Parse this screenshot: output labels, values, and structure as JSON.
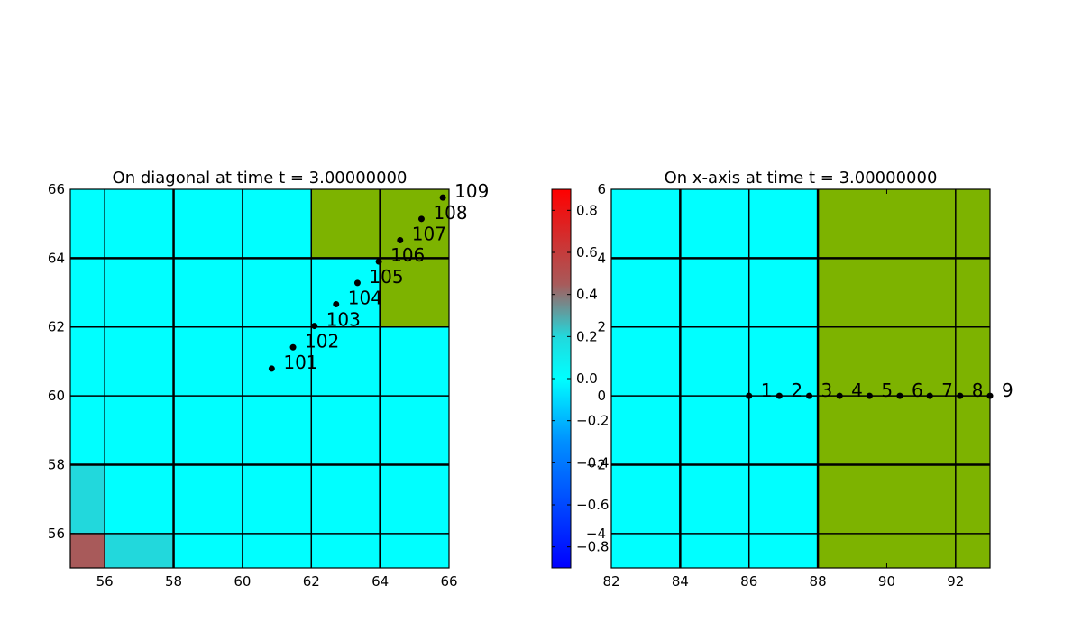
{
  "chart_data": [
    {
      "type": "heatmap",
      "title": "On diagonal at time t =      3.00000000",
      "xlim": [
        55,
        66
      ],
      "ylim": [
        55,
        66
      ],
      "xticks": [
        "56",
        "58",
        "60",
        "62",
        "64",
        "66"
      ],
      "yticks": [
        "56",
        "58",
        "60",
        "62",
        "64",
        "66"
      ],
      "cells": [
        {
          "x0": 55,
          "x1": 56,
          "y0": 55,
          "y1": 56,
          "color": "#a85a5a"
        },
        {
          "x0": 56,
          "x1": 58,
          "y0": 55,
          "y1": 56,
          "color": "#22d8dc"
        },
        {
          "x0": 55,
          "x1": 56,
          "y0": 56,
          "y1": 58,
          "color": "#22d8dc"
        },
        {
          "x0": 62,
          "x1": 66,
          "y0": 64,
          "y1": 66,
          "color": "#7db300"
        },
        {
          "x0": 64,
          "x1": 66,
          "y0": 62,
          "y1": 64,
          "color": "#7db300"
        }
      ],
      "grid_x": [
        56,
        58,
        60,
        62,
        64
      ],
      "grid_x_thick": [
        58,
        64
      ],
      "grid_y": [
        56,
        58,
        60,
        62,
        64
      ],
      "grid_y_thick": [
        58,
        64
      ],
      "points": [
        {
          "x": 60.85,
          "y": 60.79,
          "label": "101"
        },
        {
          "x": 61.47,
          "y": 61.41,
          "label": "102"
        },
        {
          "x": 62.09,
          "y": 62.03,
          "label": "103"
        },
        {
          "x": 62.72,
          "y": 62.66,
          "label": "104"
        },
        {
          "x": 63.34,
          "y": 63.28,
          "label": "105"
        },
        {
          "x": 63.96,
          "y": 63.9,
          "label": "106"
        },
        {
          "x": 64.58,
          "y": 64.52,
          "label": "107"
        },
        {
          "x": 65.2,
          "y": 65.14,
          "label": "108"
        },
        {
          "x": 65.82,
          "y": 65.76,
          "label": "109"
        }
      ]
    },
    {
      "type": "heatmap",
      "title": "On x-axis at time t =      3.00000000",
      "xlim": [
        82,
        93
      ],
      "ylim": [
        -5,
        6
      ],
      "xticks": [
        "82",
        "84",
        "86",
        "88",
        "90",
        "92"
      ],
      "yticks": [
        "−4",
        "−2",
        "0",
        "2",
        "4",
        "6"
      ],
      "cells": [
        {
          "x0": 88,
          "x1": 93,
          "y0": -5,
          "y1": 6,
          "color": "#7db300"
        }
      ],
      "grid_x": [
        84,
        86,
        88,
        92
      ],
      "grid_x_thick": [
        84,
        88
      ],
      "grid_y": [
        -4,
        -2,
        0,
        2,
        4
      ],
      "grid_y_thick": [
        -2,
        4
      ],
      "points": [
        {
          "x": 86.0,
          "y": 0,
          "label": "1"
        },
        {
          "x": 86.88,
          "y": 0,
          "label": "2"
        },
        {
          "x": 87.75,
          "y": 0,
          "label": "3"
        },
        {
          "x": 88.63,
          "y": 0,
          "label": "4"
        },
        {
          "x": 89.5,
          "y": 0,
          "label": "5"
        },
        {
          "x": 90.38,
          "y": 0,
          "label": "6"
        },
        {
          "x": 91.25,
          "y": 0,
          "label": "7"
        },
        {
          "x": 92.13,
          "y": 0,
          "label": "8"
        },
        {
          "x": 93.0,
          "y": 0,
          "label": "9"
        }
      ],
      "background_color": "#00ffff"
    },
    {
      "type": "colorbar",
      "range": [
        -0.9,
        0.9
      ],
      "ticks": [
        "0.8",
        "0.6",
        "0.4",
        "0.2",
        "0.0",
        "−0.2",
        "−0.4",
        "−0.6",
        "−0.8"
      ],
      "tick_values": [
        0.8,
        0.6,
        0.4,
        0.2,
        0.0,
        -0.2,
        -0.4,
        -0.6,
        -0.8
      ],
      "colormap": [
        {
          "v": 0.9,
          "color": "#ff0000"
        },
        {
          "v": 0.45,
          "color": "#a85a5a"
        },
        {
          "v": 0.2,
          "color": "#22d8dc"
        },
        {
          "v": 0.0,
          "color": "#00ffff"
        },
        {
          "v": -0.3,
          "color": "#0090ff"
        },
        {
          "v": -0.9,
          "color": "#0000ff"
        }
      ]
    }
  ],
  "colors": {
    "background_cell": "#00ffff",
    "grid": "#000000",
    "point": "#000000"
  }
}
